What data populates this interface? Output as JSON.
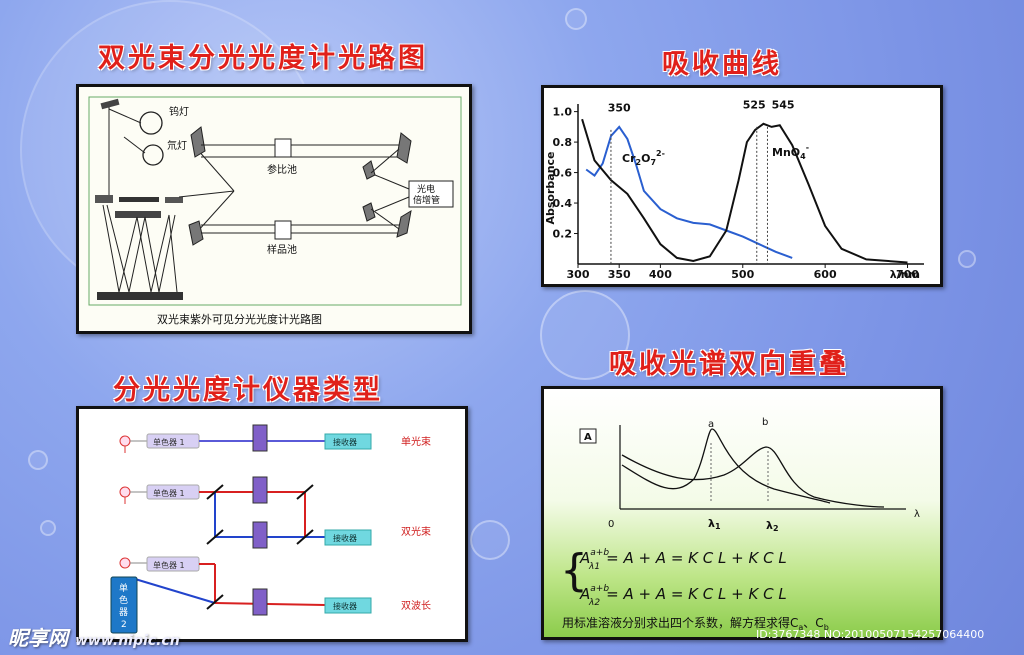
{
  "headings": {
    "optical_path": "双光束分光光度计光路图",
    "absorption_curve": "吸收曲线",
    "instrument_types": "分光光度计仪器类型",
    "spectrum_overlap": "吸收光谱双向重叠"
  },
  "optical_diagram": {
    "caption": "双光束紫外可见分光光度计光路图",
    "tungsten_lamp": "钨灯",
    "deuterium_lamp": "氘灯",
    "reference_cell": "参比池",
    "sample_cell": "样品池",
    "detector_line1": "光电",
    "detector_line2": "倍增管"
  },
  "chart_data": {
    "type": "line",
    "ylabel": "Absorbance",
    "xlabel": "λ/nm",
    "xlim": [
      300,
      720
    ],
    "ylim": [
      0,
      1.05
    ],
    "x_ticks": [
      "300",
      "350",
      "400",
      "500",
      "600",
      "700"
    ],
    "y_ticks": [
      "0.2",
      "0.4",
      "0.6",
      "0.8",
      "1.0"
    ],
    "series": [
      {
        "name": "Cr2O7 2-",
        "color": "#2a5fd0",
        "points": [
          [
            310,
            0.62
          ],
          [
            320,
            0.58
          ],
          [
            330,
            0.66
          ],
          [
            340,
            0.84
          ],
          [
            350,
            0.9
          ],
          [
            360,
            0.82
          ],
          [
            370,
            0.66
          ],
          [
            380,
            0.48
          ],
          [
            400,
            0.36
          ],
          [
            420,
            0.3
          ],
          [
            440,
            0.27
          ],
          [
            460,
            0.26
          ],
          [
            480,
            0.22
          ],
          [
            500,
            0.18
          ],
          [
            520,
            0.13
          ],
          [
            540,
            0.08
          ],
          [
            560,
            0.04
          ]
        ]
      },
      {
        "name": "MnO4-",
        "color": "#111111",
        "points": [
          [
            305,
            0.95
          ],
          [
            320,
            0.68
          ],
          [
            340,
            0.55
          ],
          [
            360,
            0.46
          ],
          [
            380,
            0.3
          ],
          [
            400,
            0.13
          ],
          [
            420,
            0.04
          ],
          [
            440,
            0.02
          ],
          [
            460,
            0.05
          ],
          [
            480,
            0.22
          ],
          [
            495,
            0.55
          ],
          [
            505,
            0.8
          ],
          [
            515,
            0.88
          ],
          [
            525,
            0.92
          ],
          [
            535,
            0.9
          ],
          [
            545,
            0.91
          ],
          [
            560,
            0.78
          ],
          [
            580,
            0.52
          ],
          [
            600,
            0.25
          ],
          [
            620,
            0.1
          ],
          [
            650,
            0.03
          ],
          [
            700,
            0.01
          ]
        ]
      }
    ],
    "annotations": {
      "peak_350": "350",
      "peak_525": "525",
      "peak_545": "545",
      "label_cr": "Cr",
      "label_cr_sub": "2",
      "label_cr_o": "O",
      "label_cr_sub2": "7",
      "label_cr_sup": "2-",
      "label_mn": "MnO",
      "label_mn_sub": "4",
      "label_mn_sup": "-"
    }
  },
  "instrument_types": {
    "monochromator_label": "单色器 1",
    "detector_label": "接收器",
    "single_beam": "单光束",
    "double_beam": "双光束",
    "dual_wavelength": "双波长",
    "monochromator2_char1": "单",
    "monochromator2_char2": "色",
    "monochromator2_char3": "器",
    "monochromator2_char4": "2"
  },
  "overlap": {
    "axis_label": "A",
    "origin": "0",
    "x_axis": "λ",
    "peak_a": "a",
    "peak_b": "b",
    "lambda1": "λ",
    "lambda1_sub": "1",
    "lambda2": "λ",
    "lambda2_sub": "2",
    "eq1_lhs": "A",
    "eq1_lhs_sup": "a+b",
    "eq1_lhs_sub": "λ1",
    "eq1_rhs": "= A + A = K C L + K C L",
    "eq2_lhs": "A",
    "eq2_lhs_sup": "a+b",
    "eq2_lhs_sub": "λ2",
    "eq2_rhs": "= A + A = K C L + K C L",
    "footer": "用标准溶液分别求出四个系数，解方程求得C",
    "footer_sub1": "a",
    "footer_mid": "、C",
    "footer_sub2": "b"
  },
  "watermark": {
    "left_brand": "昵享网",
    "left_url": "www.nipic.cn",
    "right_id": "ID:3767348 NO:20100507154257064400"
  }
}
